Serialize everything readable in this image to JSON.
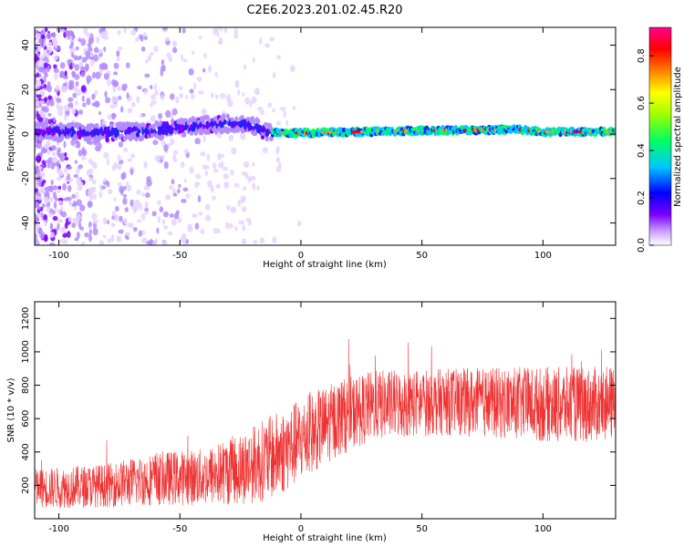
{
  "page_title": "C2E6.2023.201.02.45.R20",
  "chart_data": [
    {
      "type": "heatmap",
      "title": "C2E6.2023.201.02.45.R20",
      "xlabel": "Height of straight line (km)",
      "ylabel": "Frequency (Hz)",
      "xlim": [
        -110,
        130
      ],
      "ylim": [
        -50,
        48
      ],
      "xticks": [
        -100,
        -50,
        0,
        50,
        100
      ],
      "yticks": [
        -40,
        -20,
        0,
        20,
        40
      ],
      "colorbar": {
        "label": "Normalized spectral amplitude",
        "range": [
          0.0,
          0.92
        ],
        "ticks": [
          0.0,
          0.2,
          0.4,
          0.6,
          0.8
        ],
        "colormap": [
          "#ffffff",
          "#7a00ff",
          "#0000ff",
          "#00ffff",
          "#00ff00",
          "#ffff00",
          "#ff8000",
          "#ff0000",
          "#ff00aa"
        ]
      },
      "ridge": {
        "description_values_in_hz": true,
        "points": [
          [
            -90,
            0.5
          ],
          [
            -60,
            1.5
          ],
          [
            -40,
            4
          ],
          [
            -25,
            5
          ],
          [
            -18,
            3
          ],
          [
            -12,
            0.5
          ],
          [
            0,
            0.5
          ],
          [
            50,
            1.5
          ],
          [
            90,
            2
          ],
          [
            100,
            1
          ],
          [
            130,
            1
          ]
        ]
      }
    },
    {
      "type": "line",
      "xlabel": "Height of straight line (km)",
      "ylabel": "SNR (10 * v/v)",
      "xlim": [
        -110,
        130
      ],
      "ylim": [
        0,
        1300
      ],
      "xticks": [
        -100,
        -50,
        0,
        50,
        100
      ],
      "yticks": [
        200,
        400,
        600,
        800,
        1000,
        1200
      ],
      "series_color": "#ee3333",
      "envelope": [
        {
          "x": -110,
          "mean": 180,
          "spread": 120
        },
        {
          "x": -80,
          "mean": 200,
          "spread": 130
        },
        {
          "x": -60,
          "mean": 240,
          "spread": 160
        },
        {
          "x": -40,
          "mean": 250,
          "spread": 170
        },
        {
          "x": -25,
          "mean": 300,
          "spread": 220
        },
        {
          "x": -10,
          "mean": 380,
          "spread": 260
        },
        {
          "x": 0,
          "mean": 470,
          "spread": 250
        },
        {
          "x": 15,
          "mean": 600,
          "spread": 230
        },
        {
          "x": 30,
          "mean": 680,
          "spread": 210
        },
        {
          "x": 60,
          "mean": 700,
          "spread": 200
        },
        {
          "x": 90,
          "mean": 690,
          "spread": 220
        },
        {
          "x": 110,
          "mean": 680,
          "spread": 230
        },
        {
          "x": 130,
          "mean": 690,
          "spread": 220
        }
      ]
    }
  ]
}
